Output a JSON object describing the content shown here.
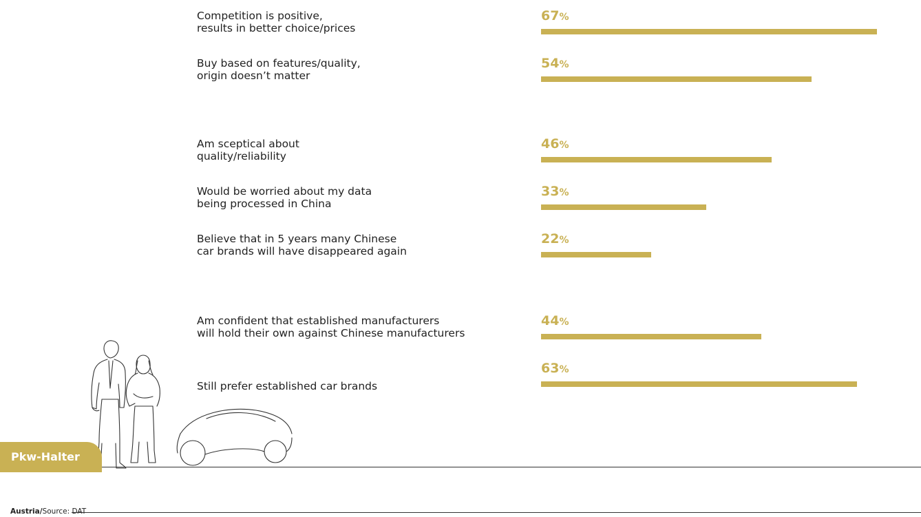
{
  "chart_data": {
    "type": "bar",
    "orientation": "horizontal",
    "unit": "%",
    "categories": [
      "Competition is positive,\nresults in better choice/prices",
      "Buy based on features/quality,\norigin doesn’t matter",
      "Am sceptical about\nquality/reliability",
      "Would be worried about my data\nbeing processed in China",
      "Believe that in 5 years many Chinese\ncar brands will have disappeared again",
      "Am confident that established manufacturers\nwill hold their own against Chinese manufacturers",
      "Still prefer established car brands"
    ],
    "values": [
      67,
      54,
      46,
      33,
      22,
      44,
      63
    ],
    "xlim": [
      0,
      100
    ],
    "grid": false,
    "legend": "none"
  },
  "badge": {
    "label": "Pkw-Halter"
  },
  "source": {
    "country": "Austria/",
    "text": "Source: DAT"
  },
  "colors": {
    "bar": "#c9b154",
    "badge": "#c9b154",
    "text": "#222222",
    "line": "#333333"
  }
}
